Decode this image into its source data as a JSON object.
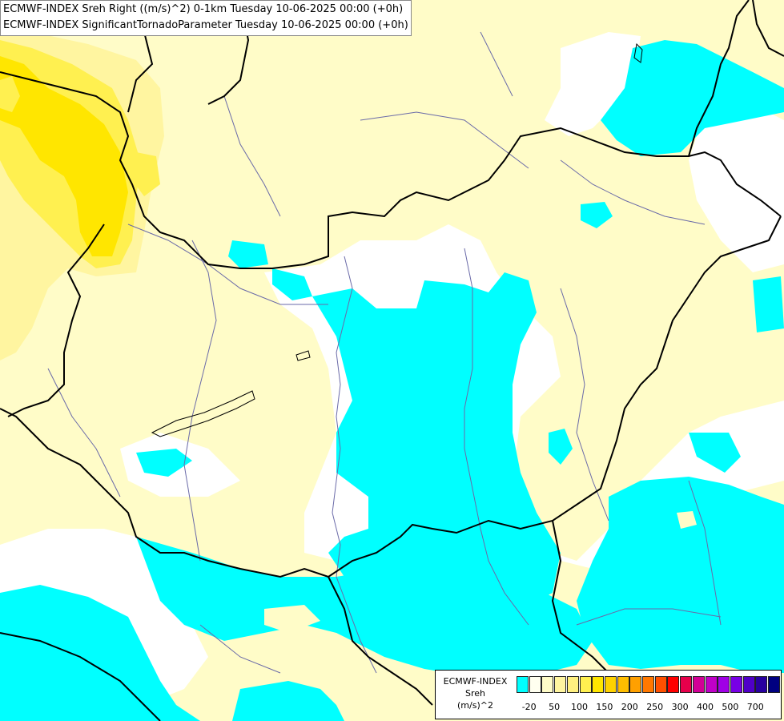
{
  "titles": [
    "ECMWF-INDEX Sreh Right ((m/s)^2) 0-1km Tuesday 10-06-2025 00:00 (+0h)",
    "ECMWF-INDEX SignificantTornadoParameter Tuesday 10-06-2025 00:00 (+0h)"
  ],
  "colors": {
    "cyan": "#00ffff",
    "light_yellow": "#fffcc8",
    "pale_yellow": "#fff5a0",
    "yellow": "#fff050",
    "bright_yellow": "#ffe600",
    "border": "#000000",
    "river": "#6a6aa8"
  },
  "legend": {
    "title_lines": [
      "ECMWF-INDEX",
      "Sreh",
      "(m/s)^2"
    ],
    "swatches": [
      "#00ffff",
      "#fffff0",
      "#fffcc8",
      "#fff5a0",
      "#fff080",
      "#fff050",
      "#ffe600",
      "#ffd200",
      "#ffbe00",
      "#ffa000",
      "#ff7800",
      "#ff5000",
      "#ff0000",
      "#e6004b",
      "#d20096",
      "#c000c8",
      "#a000e6",
      "#7800e6",
      "#5000c8",
      "#2800a0",
      "#000080"
    ],
    "ticks": [
      "-20",
      "50",
      "100",
      "150",
      "200",
      "250",
      "300",
      "400",
      "500",
      "700"
    ]
  }
}
